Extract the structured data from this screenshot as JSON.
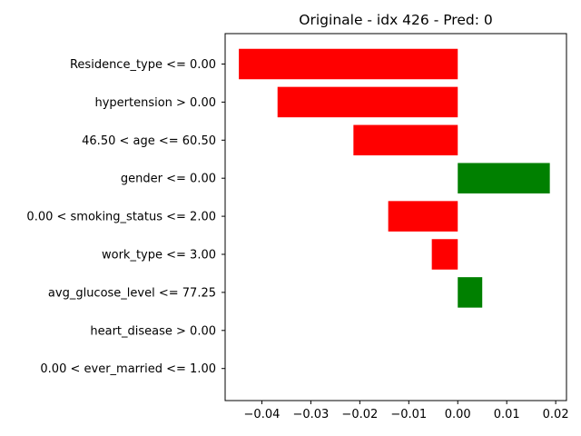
{
  "chart_data": {
    "type": "bar",
    "orientation": "horizontal",
    "title": "Originale - idx 426 - Pred: 0",
    "xlabel": "",
    "ylabel": "",
    "categories": [
      "Residence_type <= 0.00",
      "hypertension > 0.00",
      "46.50 < age <= 60.50",
      "gender <= 0.00",
      "0.00 < smoking_status <= 2.00",
      "work_type <= 3.00",
      "avg_glucose_level <= 77.25",
      "heart_disease > 0.00",
      "0.00 < ever_married <= 1.00"
    ],
    "values": [
      -0.0447,
      -0.0368,
      -0.0213,
      0.0188,
      -0.0142,
      -0.0053,
      0.005,
      0.0,
      0.0
    ],
    "xlim": [
      -0.0475,
      0.0222
    ],
    "xticks": [
      -0.04,
      -0.03,
      -0.02,
      -0.01,
      0.0,
      0.01,
      0.02
    ],
    "xtick_labels": [
      "−0.04",
      "−0.03",
      "−0.02",
      "−0.01",
      "0.00",
      "0.01",
      "0.02"
    ],
    "grid": false,
    "colors": {
      "positive": "#008000",
      "negative": "#ff0000"
    }
  }
}
